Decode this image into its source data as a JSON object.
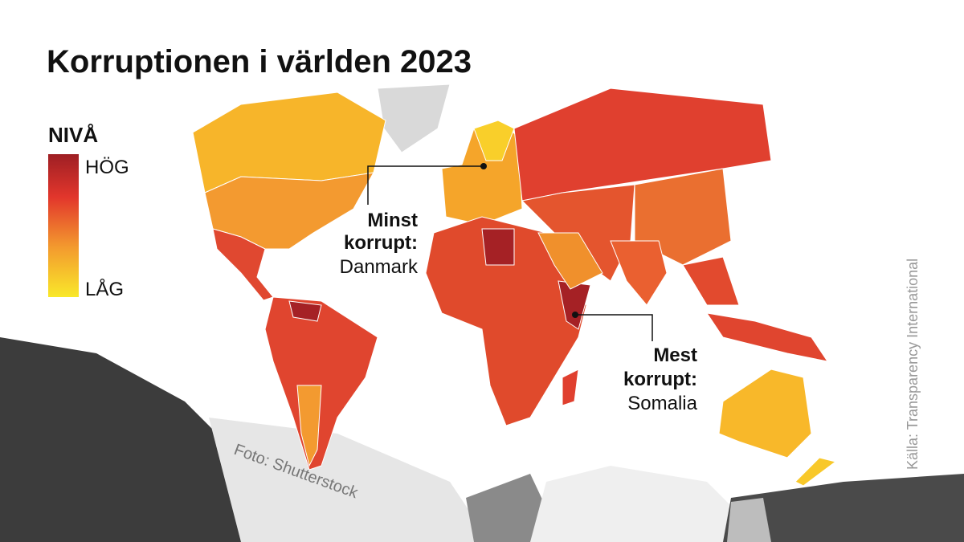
{
  "header": {
    "title": "Korruptionen i världen 2023"
  },
  "legend": {
    "title": "NIVÅ",
    "high": "HÖG",
    "low": "LÅG"
  },
  "annotations": [
    {
      "lines": [
        "Minst",
        "korrupt:"
      ],
      "place": "Danmark"
    },
    {
      "lines": [
        "Mest",
        "korrupt:"
      ],
      "place": "Somalia"
    }
  ],
  "credits": {
    "photo": "Foto: Shutterstock",
    "source": "Källa: Transparency International"
  }
}
